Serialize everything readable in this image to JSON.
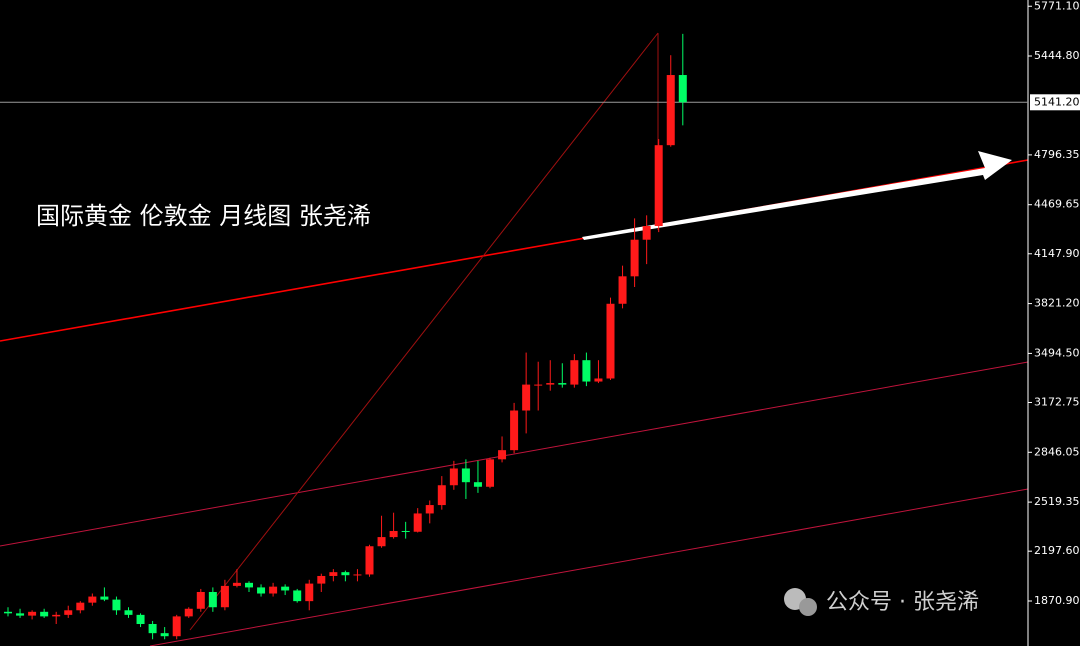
{
  "chart_data": {
    "type": "candlestick",
    "title": "国际黄金 伦敦金 月线图 张尧浠",
    "watermark": "公众号 · 张尧浠",
    "categories": [
      null,
      null,
      null,
      null,
      null,
      null,
      null,
      null,
      null,
      null,
      null,
      null,
      null,
      null,
      null,
      null,
      null,
      null,
      null,
      null,
      null,
      null,
      null,
      null,
      null,
      null,
      null,
      null,
      null,
      null,
      null,
      null,
      null,
      null,
      null,
      null,
      null,
      null,
      null,
      null,
      null,
      null,
      null,
      null,
      null,
      null,
      null,
      null,
      null,
      null,
      null,
      null,
      null,
      null,
      null,
      null,
      null
    ],
    "open": [
      1800,
      1790,
      1775,
      1800,
      1770,
      1780,
      1810,
      1860,
      1900,
      1880,
      1810,
      1780,
      1720,
      1660,
      1640,
      1770,
      1820,
      1930,
      1830,
      1970,
      1990,
      1960,
      1920,
      1965,
      1940,
      1870,
      1985,
      2035,
      2060,
      2040,
      2045,
      2230,
      2290,
      2330,
      2325,
      2445,
      2500,
      2630,
      2740,
      2650,
      2620,
      2800,
      2860,
      3120,
      3290,
      3290,
      3300,
      3290,
      3450,
      3310,
      3330,
      3820,
      4000,
      4240,
      4330,
      4860,
      5320
    ],
    "high": [
      1830,
      1820,
      1810,
      1820,
      1800,
      1840,
      1870,
      1920,
      1960,
      1900,
      1830,
      1790,
      1740,
      1700,
      1780,
      1830,
      1950,
      1960,
      2010,
      2080,
      2000,
      1980,
      1990,
      1980,
      1950,
      2010,
      2050,
      2080,
      2070,
      2080,
      2240,
      2430,
      2450,
      2390,
      2480,
      2530,
      2690,
      2790,
      2800,
      2790,
      2810,
      2950,
      3170,
      3500,
      3440,
      3450,
      3430,
      3490,
      3500,
      3450,
      3860,
      4070,
      4380,
      4400,
      4900,
      5450,
      5590
    ],
    "low": [
      1770,
      1760,
      1750,
      1760,
      1720,
      1760,
      1790,
      1840,
      1870,
      1780,
      1760,
      1700,
      1620,
      1620,
      1620,
      1760,
      1800,
      1800,
      1810,
      1960,
      1930,
      1900,
      1900,
      1910,
      1860,
      1810,
      1930,
      2000,
      2000,
      2000,
      2030,
      2220,
      2280,
      2280,
      2320,
      2380,
      2470,
      2600,
      2540,
      2580,
      2610,
      2780,
      2840,
      2970,
      3120,
      3250,
      3270,
      3270,
      3280,
      3300,
      3320,
      3790,
      3930,
      4080,
      4290,
      4850,
      4990
    ],
    "close": [
      1790,
      1775,
      1800,
      1770,
      1780,
      1810,
      1860,
      1900,
      1880,
      1810,
      1780,
      1720,
      1660,
      1640,
      1770,
      1820,
      1930,
      1830,
      1970,
      1990,
      1960,
      1920,
      1965,
      1940,
      1870,
      1985,
      2035,
      2060,
      2040,
      2045,
      2230,
      2290,
      2330,
      2325,
      2445,
      2500,
      2630,
      2740,
      2650,
      2620,
      2800,
      2860,
      3120,
      3290,
      3290,
      3300,
      3290,
      3450,
      3310,
      3330,
      3820,
      4000,
      4240,
      4330,
      4860,
      5320,
      5141.2
    ],
    "up_color": "#ff1a1a",
    "down_color": "#00ff66",
    "ylim": [
      1575.8,
      5812
    ],
    "yticks": [
      {
        "value": 5771.1,
        "label": "5771.10"
      },
      {
        "value": 5444.8,
        "label": "5444.80"
      },
      {
        "value": 4796.35,
        "label": "4796.35"
      },
      {
        "value": 4469.65,
        "label": "4469.65"
      },
      {
        "value": 4147.9,
        "label": "4147.90"
      },
      {
        "value": 3821.2,
        "label": "3821.20"
      },
      {
        "value": 3494.5,
        "label": "3494.50"
      },
      {
        "value": 3172.75,
        "label": "3172.75"
      },
      {
        "value": 2846.05,
        "label": "2846.05"
      },
      {
        "value": 2519.35,
        "label": "2519.35"
      },
      {
        "value": 2197.6,
        "label": "2197.60"
      },
      {
        "value": 1870.9,
        "label": "1870.90"
      }
    ],
    "current_price": {
      "value": 5141.2,
      "label": "5141.20"
    }
  }
}
